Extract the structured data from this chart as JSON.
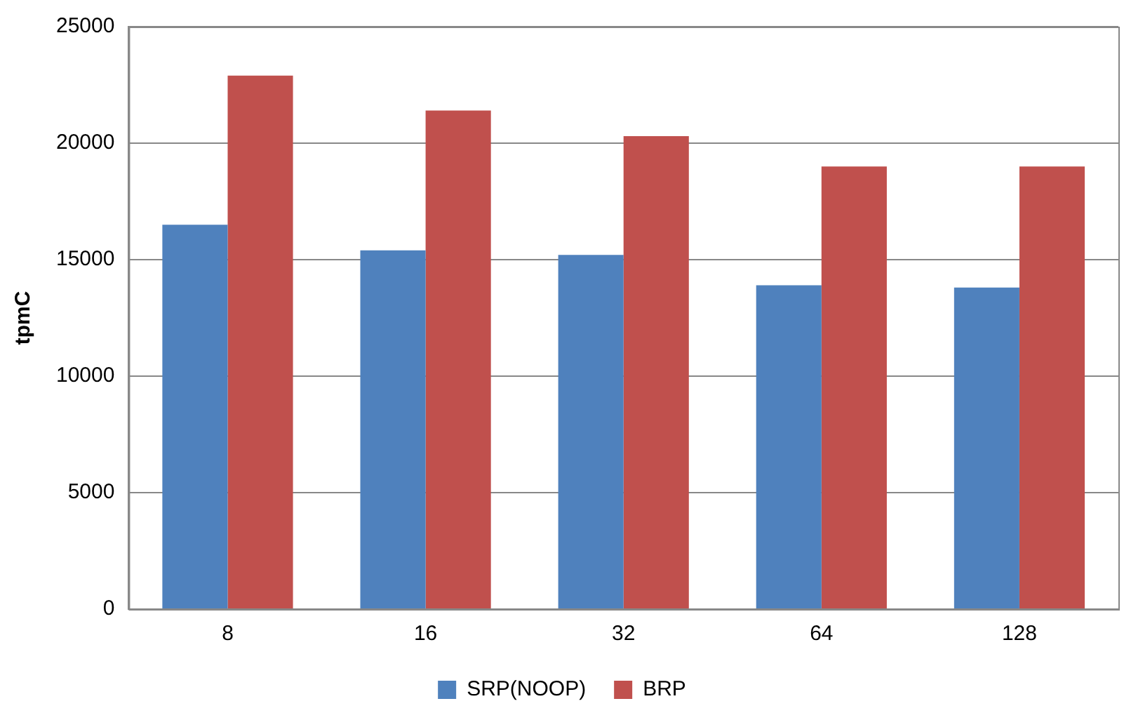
{
  "chart_data": {
    "type": "bar",
    "ylabel": "tpmC",
    "categories": [
      "8",
      "16",
      "32",
      "64",
      "128"
    ],
    "series": [
      {
        "name": "SRP(NOOP)",
        "color": "#4f81bd",
        "values": [
          16500,
          15400,
          15200,
          13900,
          13800
        ]
      },
      {
        "name": "BRP",
        "color": "#c0504d",
        "values": [
          22900,
          21400,
          20300,
          19000,
          19000
        ]
      }
    ],
    "ylim": [
      0,
      25000
    ],
    "yticks": [
      0,
      5000,
      10000,
      15000,
      20000,
      25000
    ],
    "grid": "y",
    "legend": "bottom"
  }
}
